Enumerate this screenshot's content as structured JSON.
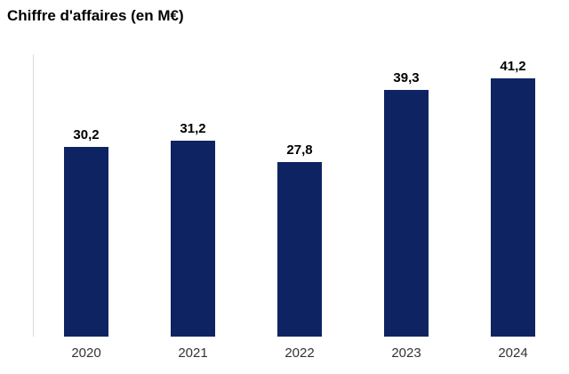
{
  "title": "Chiffre d'affaires (en M€)",
  "chart_data": {
    "type": "bar",
    "title": "Chiffre d'affaires (en M€)",
    "categories": [
      "2020",
      "2021",
      "2022",
      "2023",
      "2024"
    ],
    "values": [
      30.2,
      31.2,
      27.8,
      39.3,
      41.2
    ],
    "value_labels": [
      "30,2",
      "31,2",
      "27,8",
      "39,3",
      "41,2"
    ],
    "xlabel": "",
    "ylabel": "",
    "ylim": [
      0,
      45
    ],
    "grid": false,
    "legend_position": "none",
    "decimal_separator": ",",
    "colors": {
      "bar": "#0e2462",
      "axis_line": "#dcdcdc",
      "title": "#000000",
      "value_label": "#000000",
      "category_label": "#333333",
      "background": "#ffffff"
    }
  }
}
